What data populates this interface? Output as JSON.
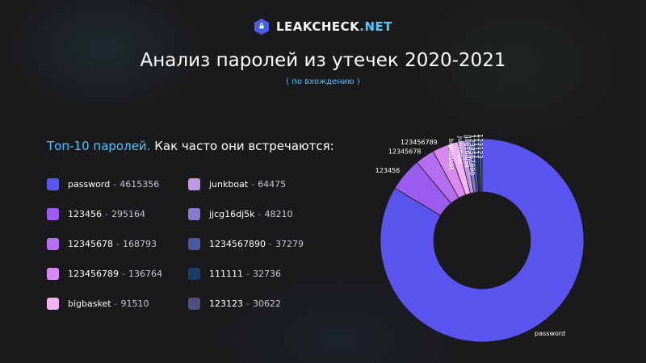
{
  "brand": {
    "name": "LEAKCHECK",
    "tld": ".NET"
  },
  "title": "Анализ паролей из утечек 2020-2021",
  "subtitle": "( по вхождению )",
  "legend_heading": {
    "accent": "Топ-10 паролей.",
    "rest": "Как часто они встречаются:"
  },
  "colors": {
    "accent": "#4fc3ff",
    "background": "#1a1a1c"
  },
  "chart_data": {
    "type": "pie",
    "donut": true,
    "title": "",
    "categories": [
      "password",
      "123456",
      "12345678",
      "123456789",
      "bigbasket",
      "junkboat",
      "jjcg16dj5k",
      "1234567890",
      "111111",
      "123123"
    ],
    "values": [
      4615356,
      295164,
      168793,
      136764,
      91510,
      64475,
      48210,
      37279,
      32736,
      30622
    ],
    "value_labels": [
      "4615356",
      "295164",
      "168793",
      "136764",
      "91510",
      "64475",
      "48210",
      "37279",
      "32736",
      "30622"
    ],
    "colors": [
      "#5b55f0",
      "#9d5cf0",
      "#b56ef0",
      "#d88af0",
      "#f4b4f4",
      "#c09ae8",
      "#8a78d0",
      "#4a58a0",
      "#1c3a6a",
      "#505080"
    ],
    "legend_position": "left"
  }
}
